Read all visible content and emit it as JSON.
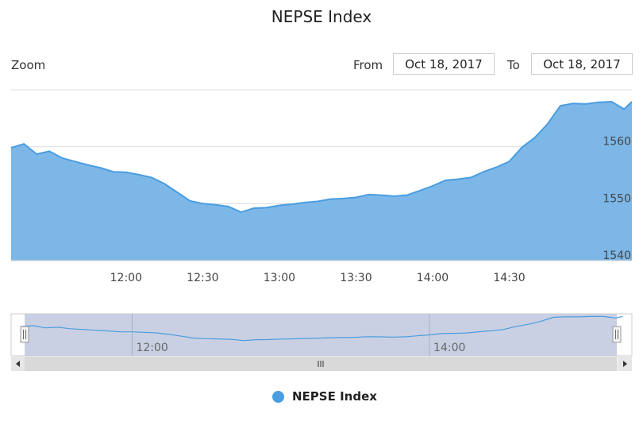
{
  "chart_data": {
    "type": "area",
    "title": "NEPSE Index",
    "series": [
      {
        "name": "NEPSE Index",
        "color": "#4a9de0",
        "points": [
          [
            "11:15",
            1559.8
          ],
          [
            "11:20",
            1560.5
          ],
          [
            "11:25",
            1558.7
          ],
          [
            "11:30",
            1559.2
          ],
          [
            "11:35",
            1558.0
          ],
          [
            "11:40",
            1557.4
          ],
          [
            "11:45",
            1556.8
          ],
          [
            "11:50",
            1556.3
          ],
          [
            "11:55",
            1555.6
          ],
          [
            "12:00",
            1555.5
          ],
          [
            "12:05",
            1555.1
          ],
          [
            "12:10",
            1554.6
          ],
          [
            "12:15",
            1553.5
          ],
          [
            "12:20",
            1552.0
          ],
          [
            "12:25",
            1550.5
          ],
          [
            "12:30",
            1550.0
          ],
          [
            "12:35",
            1549.8
          ],
          [
            "12:40",
            1549.5
          ],
          [
            "12:45",
            1548.5
          ],
          [
            "12:50",
            1549.2
          ],
          [
            "12:55",
            1549.3
          ],
          [
            "13:00",
            1549.7
          ],
          [
            "13:05",
            1549.9
          ],
          [
            "13:10",
            1550.2
          ],
          [
            "13:15",
            1550.4
          ],
          [
            "13:20",
            1550.8
          ],
          [
            "13:25",
            1550.9
          ],
          [
            "13:30",
            1551.1
          ],
          [
            "13:35",
            1551.6
          ],
          [
            "13:40",
            1551.5
          ],
          [
            "13:45",
            1551.3
          ],
          [
            "13:50",
            1551.5
          ],
          [
            "13:55",
            1552.3
          ],
          [
            "14:00",
            1553.1
          ],
          [
            "14:05",
            1554.1
          ],
          [
            "14:10",
            1554.3
          ],
          [
            "14:15",
            1554.6
          ],
          [
            "14:20",
            1555.6
          ],
          [
            "14:25",
            1556.4
          ],
          [
            "14:30",
            1557.4
          ],
          [
            "14:35",
            1559.9
          ],
          [
            "14:40",
            1561.6
          ],
          [
            "14:45",
            1564.0
          ],
          [
            "14:50",
            1567.2
          ],
          [
            "14:55",
            1567.6
          ],
          [
            "15:00",
            1567.5
          ],
          [
            "15:05",
            1567.8
          ],
          [
            "15:10",
            1567.9
          ],
          [
            "15:15",
            1566.6
          ],
          [
            "15:18",
            1567.9
          ]
        ]
      }
    ],
    "x_tick_labels": [
      "12:00",
      "12:30",
      "13:00",
      "13:30",
      "14:00",
      "14:30"
    ],
    "y_tick_labels": [
      "1540",
      "1550",
      "1560"
    ],
    "ylim": [
      1540,
      1570
    ],
    "navigator_labels": [
      "12:00",
      "14:00"
    ],
    "grid": true,
    "legend": "bottom-center"
  },
  "controls": {
    "zoom_label": "Zoom",
    "from_label": "From",
    "from_date": "Oct 18, 2017",
    "to_label": "To",
    "to_date": "Oct 18, 2017"
  },
  "legend_label": "NEPSE Index",
  "icons": {
    "handle": "grip-handle-icon",
    "scroll_left": "arrow-left-icon",
    "scroll_right": "arrow-right-icon",
    "scroll_grip": "grip-lines-icon"
  },
  "colors": {
    "line": "#4a9de0",
    "area": "#7db7e8",
    "navigator_mask": "#c4cbe0",
    "scrollbar": "#d9d9d9"
  }
}
